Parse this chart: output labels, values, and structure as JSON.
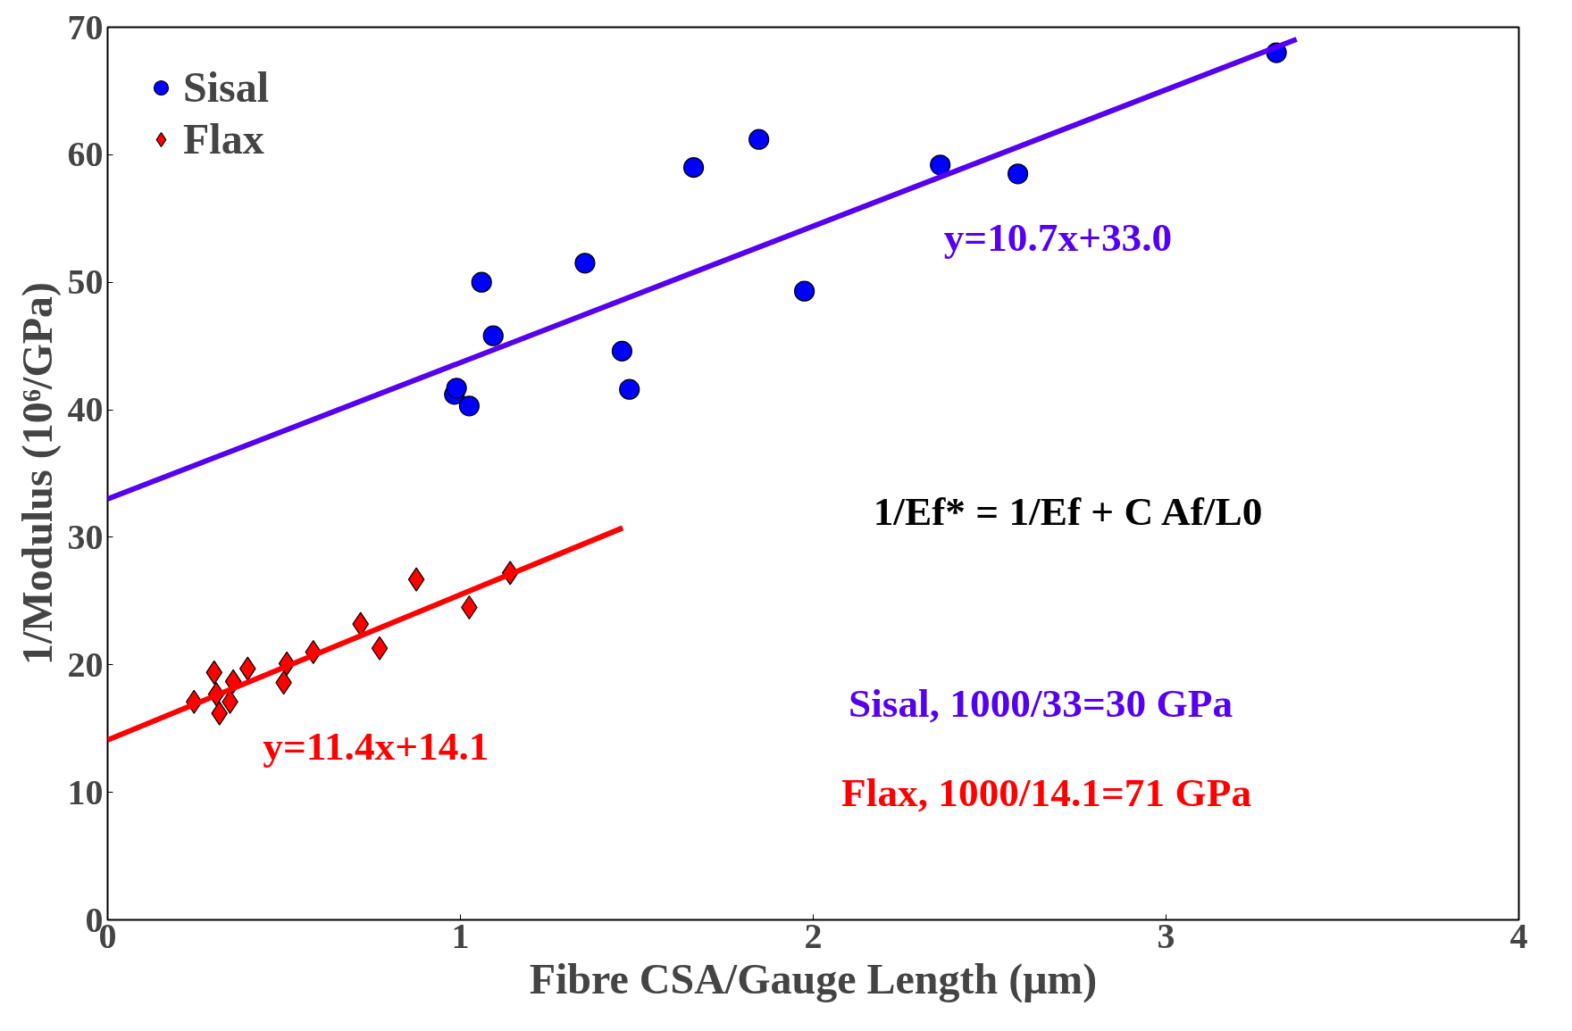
{
  "chart_data": {
    "type": "scatter",
    "xlabel": "Fibre CSA/Gauge Length (μm)",
    "ylabel": "1/Modulus (10⁶/GPa)",
    "xlim": [
      0,
      4
    ],
    "ylim": [
      0,
      70
    ],
    "xticks": [
      0,
      1,
      2,
      3,
      4
    ],
    "yticks": [
      0,
      10,
      20,
      30,
      40,
      50,
      60,
      70
    ],
    "grid": false,
    "legend": "top left",
    "series": [
      {
        "name": "Sisal",
        "color": "#0000ff",
        "marker": "circle",
        "x": [
          0.983,
          0.989,
          1.025,
          1.06,
          1.093,
          1.353,
          1.458,
          1.479,
          1.661,
          1.846,
          1.975,
          2.36,
          2.58,
          3.313
        ],
        "values": [
          41.2,
          41.7,
          40.3,
          50.0,
          45.8,
          51.5,
          44.6,
          41.6,
          59.0,
          61.2,
          49.3,
          59.2,
          58.5,
          68.0
        ]
      },
      {
        "name": "Flax",
        "color": "#ff0000",
        "marker": "diamond",
        "x": [
          0.245,
          0.302,
          0.308,
          0.317,
          0.347,
          0.356,
          0.397,
          0.499,
          0.508,
          0.583,
          0.717,
          0.771,
          0.875,
          1.025,
          1.141
        ],
        "values": [
          17.1,
          19.4,
          17.7,
          16.2,
          17.1,
          18.7,
          19.7,
          18.6,
          20.1,
          21.0,
          23.2,
          21.3,
          26.7,
          24.5,
          27.2
        ]
      },
      {
        "type": "line",
        "color": "#5500ee",
        "x": [
          0,
          3.37
        ],
        "values": [
          33.0,
          69.06
        ]
      },
      {
        "type": "line",
        "color": "#ff0000",
        "x": [
          0,
          1.46
        ],
        "values": [
          14.1,
          30.74
        ]
      }
    ],
    "annotations": [
      "y=10.7x+33.0",
      "y=11.4x+14.1",
      "1/Ef* = 1/Ef + C Af/L0",
      "Sisal, 1000/33=30 GPa",
      "Flax, 1000/14.1=71 GPa"
    ]
  }
}
